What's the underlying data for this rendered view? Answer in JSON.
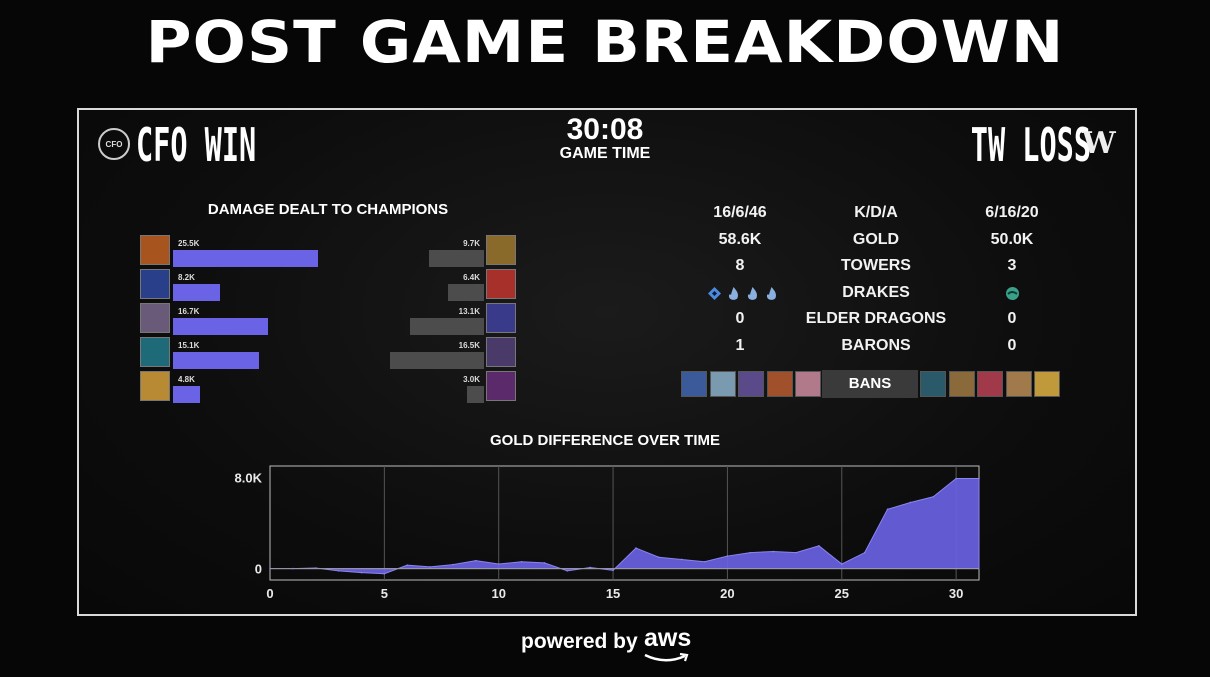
{
  "title": "POST GAME BREAKDOWN",
  "game_time": {
    "value": "30:08",
    "label": "GAME TIME"
  },
  "team_left": {
    "logo_text": "CFO",
    "name": "CFO WIN",
    "color": "#6b63e6"
  },
  "team_right": {
    "logo_text": "W",
    "name": "TW LOSS",
    "color": "#4c4c4c"
  },
  "damage": {
    "title": "DAMAGE DEALT TO CHAMPIONS",
    "left": [
      {
        "value": 25.5,
        "label": "25.5K",
        "icon": "#a8541e"
      },
      {
        "value": 8.2,
        "label": "8.2K",
        "icon": "#2a3f8a"
      },
      {
        "value": 16.7,
        "label": "16.7K",
        "icon": "#6a5a7a"
      },
      {
        "value": 15.1,
        "label": "15.1K",
        "icon": "#1f6a78"
      },
      {
        "value": 4.8,
        "label": "4.8K",
        "icon": "#b88a34"
      }
    ],
    "right": [
      {
        "value": 9.7,
        "label": "9.7K",
        "icon": "#8a6a2a"
      },
      {
        "value": 6.4,
        "label": "6.4K",
        "icon": "#a8302a"
      },
      {
        "value": 13.1,
        "label": "13.1K",
        "icon": "#3a3a8a"
      },
      {
        "value": 16.5,
        "label": "16.5K",
        "icon": "#4a3a6a"
      },
      {
        "value": 3.0,
        "label": "3.0K",
        "icon": "#5a2a6a"
      }
    ],
    "max": 25.5
  },
  "stats": [
    {
      "left": "16/6/46",
      "label": "K/D/A",
      "right": "6/16/20"
    },
    {
      "left": "58.6K",
      "label": "GOLD",
      "right": "50.0K"
    },
    {
      "left": "8",
      "label": "TOWERS",
      "right": "3"
    },
    {
      "left": "",
      "label": "DRAKES",
      "right": ""
    },
    {
      "left": "0",
      "label": "ELDER DRAGONS",
      "right": "0"
    },
    {
      "left": "1",
      "label": "BARONS",
      "right": "0"
    }
  ],
  "drakes": {
    "left_icons": [
      "diamond-drake-icon",
      "flame-drake-icon",
      "flame-drake-icon",
      "flame-drake-icon"
    ],
    "right_icons": [
      "ocean-drake-icon"
    ],
    "left_colors": [
      "#4a8adf",
      "#8ab0e0",
      "#8ab0e0",
      "#8ab0e0"
    ],
    "right_color": "#3aa08a"
  },
  "bans": {
    "label": "BANS",
    "left": [
      "#3a5a9a",
      "#7a9ab0",
      "#5a4a8a",
      "#a0502a",
      "#b07a8a"
    ],
    "right": [
      "#2a5a6a",
      "#8a6a3a",
      "#a03a4a",
      "#a07a4a",
      "#c09a3a"
    ]
  },
  "chart_data": {
    "type": "area",
    "title": "GOLD DIFFERENCE OVER TIME",
    "xlabel": "",
    "ylabel": "",
    "xlim": [
      0,
      31
    ],
    "ylim": [
      -1000,
      9000
    ],
    "xticks": [
      0,
      5,
      10,
      15,
      20,
      25,
      30
    ],
    "yticks": [
      {
        "value": 8000,
        "label": "8.0K"
      },
      {
        "value": 0,
        "label": "0"
      }
    ],
    "grid": true,
    "color": "#6b63e6",
    "x": [
      0,
      1,
      2,
      3,
      4,
      5,
      6,
      7,
      8,
      9,
      10,
      11,
      12,
      13,
      14,
      15,
      16,
      17,
      18,
      19,
      20,
      21,
      22,
      23,
      24,
      25,
      26,
      27,
      28,
      29,
      30,
      31
    ],
    "y": [
      0,
      0,
      50,
      -200,
      -350,
      -450,
      300,
      150,
      350,
      700,
      400,
      600,
      500,
      -200,
      100,
      -150,
      1800,
      1000,
      800,
      600,
      1100,
      1400,
      1500,
      1400,
      2000,
      400,
      1400,
      5200,
      5800,
      6300,
      7900,
      7900
    ]
  },
  "footer": {
    "powered": "powered by",
    "brand": "aws"
  }
}
